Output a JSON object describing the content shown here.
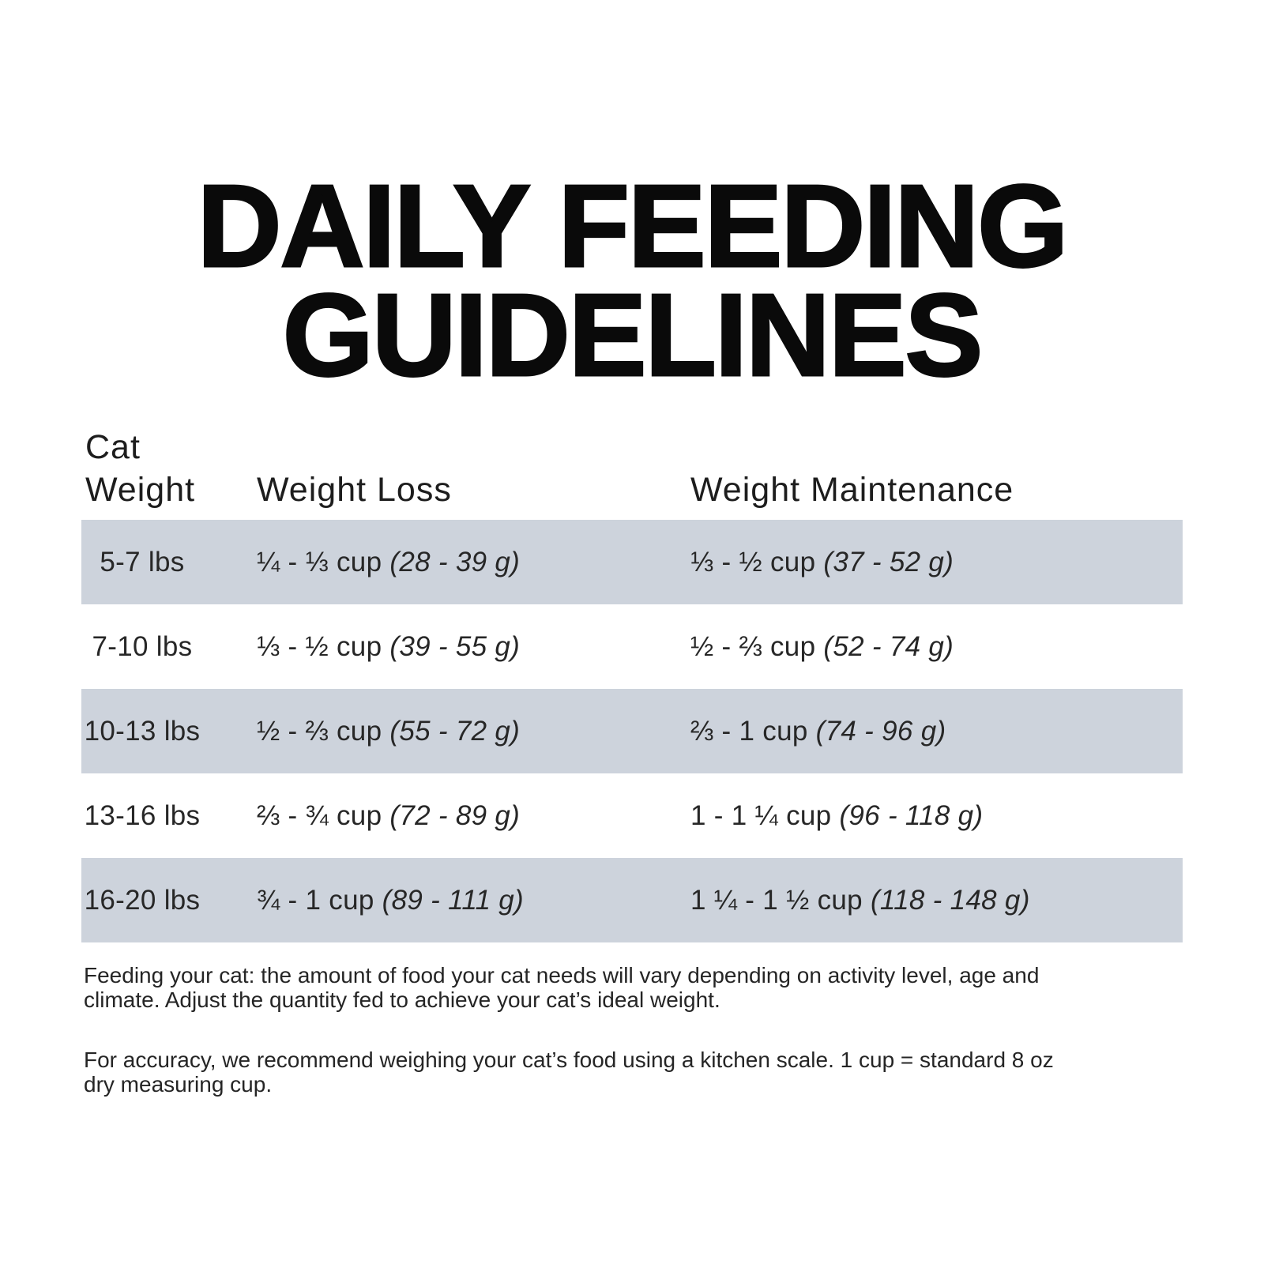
{
  "title": {
    "line1": "DAILY FEEDING",
    "line2": "GUIDELINES"
  },
  "table": {
    "header": {
      "col1_line1": "Cat",
      "col1_line2": "Weight",
      "col2": "Weight Loss",
      "col3": "Weight Maintenance"
    },
    "rows": [
      {
        "weight": "5-7 lbs",
        "loss_cups": "¼ - ⅓ cup",
        "loss_grams": "(28 - 39 g)",
        "maint_cups": "⅓ - ½ cup",
        "maint_grams": "(37 - 52 g)"
      },
      {
        "weight": "7-10 lbs",
        "loss_cups": "⅓ - ½ cup",
        "loss_grams": "(39 - 55 g)",
        "maint_cups": "½ - ⅔ cup",
        "maint_grams": "(52 - 74 g)"
      },
      {
        "weight": "10-13 lbs",
        "loss_cups": "½ - ⅔ cup",
        "loss_grams": "(55 - 72 g)",
        "maint_cups": "⅔ - 1 cup",
        "maint_grams": "(74 - 96 g)"
      },
      {
        "weight": "13-16 lbs",
        "loss_cups": "⅔ - ¾ cup",
        "loss_grams": "(72 - 89 g)",
        "maint_cups": "1 - 1 ¼ cup",
        "maint_grams": "(96 - 118 g)"
      },
      {
        "weight": "16-20 lbs",
        "loss_cups": "¾ - 1 cup",
        "loss_grams": "(89 - 111 g)",
        "maint_cups": "1 ¼ - 1 ½ cup",
        "maint_grams": "(118 - 148 g)"
      }
    ]
  },
  "notes": {
    "feeding_line1": "Feeding your cat: the amount of food your cat needs will vary depending on activity level, age and",
    "feeding_line2": "climate. Adjust the quantity fed to achieve your cat’s ideal weight.",
    "accuracy_line1": "For accuracy, we recommend weighing your cat’s food using a kitchen scale. 1 cup = standard 8 oz",
    "accuracy_line2": "dry measuring cup."
  },
  "colors": {
    "stripe": "#cdd3dc",
    "title_text": "#0a0a0a",
    "body_text": "#272727"
  }
}
